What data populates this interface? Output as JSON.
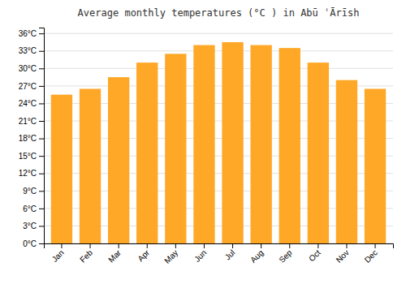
{
  "chart_data": {
    "type": "bar",
    "title": "Average monthly temperatures (°C ) in Abū ʿĀrīsh",
    "categories": [
      "Jan",
      "Feb",
      "Mar",
      "Apr",
      "May",
      "Jun",
      "Jul",
      "Aug",
      "Sep",
      "Oct",
      "Nov",
      "Dec"
    ],
    "values": [
      25.5,
      26.5,
      28.5,
      31.0,
      32.5,
      34.0,
      34.5,
      34.0,
      33.5,
      31.0,
      28.0,
      26.5
    ],
    "color": "#FFA726",
    "ylim": [
      0,
      37
    ],
    "yticks": [
      {
        "value": 0,
        "label": "0°C"
      },
      {
        "value": 3,
        "label": "3°C"
      },
      {
        "value": 6,
        "label": "6°C"
      },
      {
        "value": 9,
        "label": "9°C"
      },
      {
        "value": 12,
        "label": "12°C"
      },
      {
        "value": 15,
        "label": "15°C"
      },
      {
        "value": 18,
        "label": "18°C"
      },
      {
        "value": 21,
        "label": "21°C"
      },
      {
        "value": 24,
        "label": "24°C"
      },
      {
        "value": 27,
        "label": "27°C"
      },
      {
        "value": 30,
        "label": "30°C"
      },
      {
        "value": 33,
        "label": "33°C"
      },
      {
        "value": 36,
        "label": "36°C"
      }
    ],
    "grid": true
  }
}
